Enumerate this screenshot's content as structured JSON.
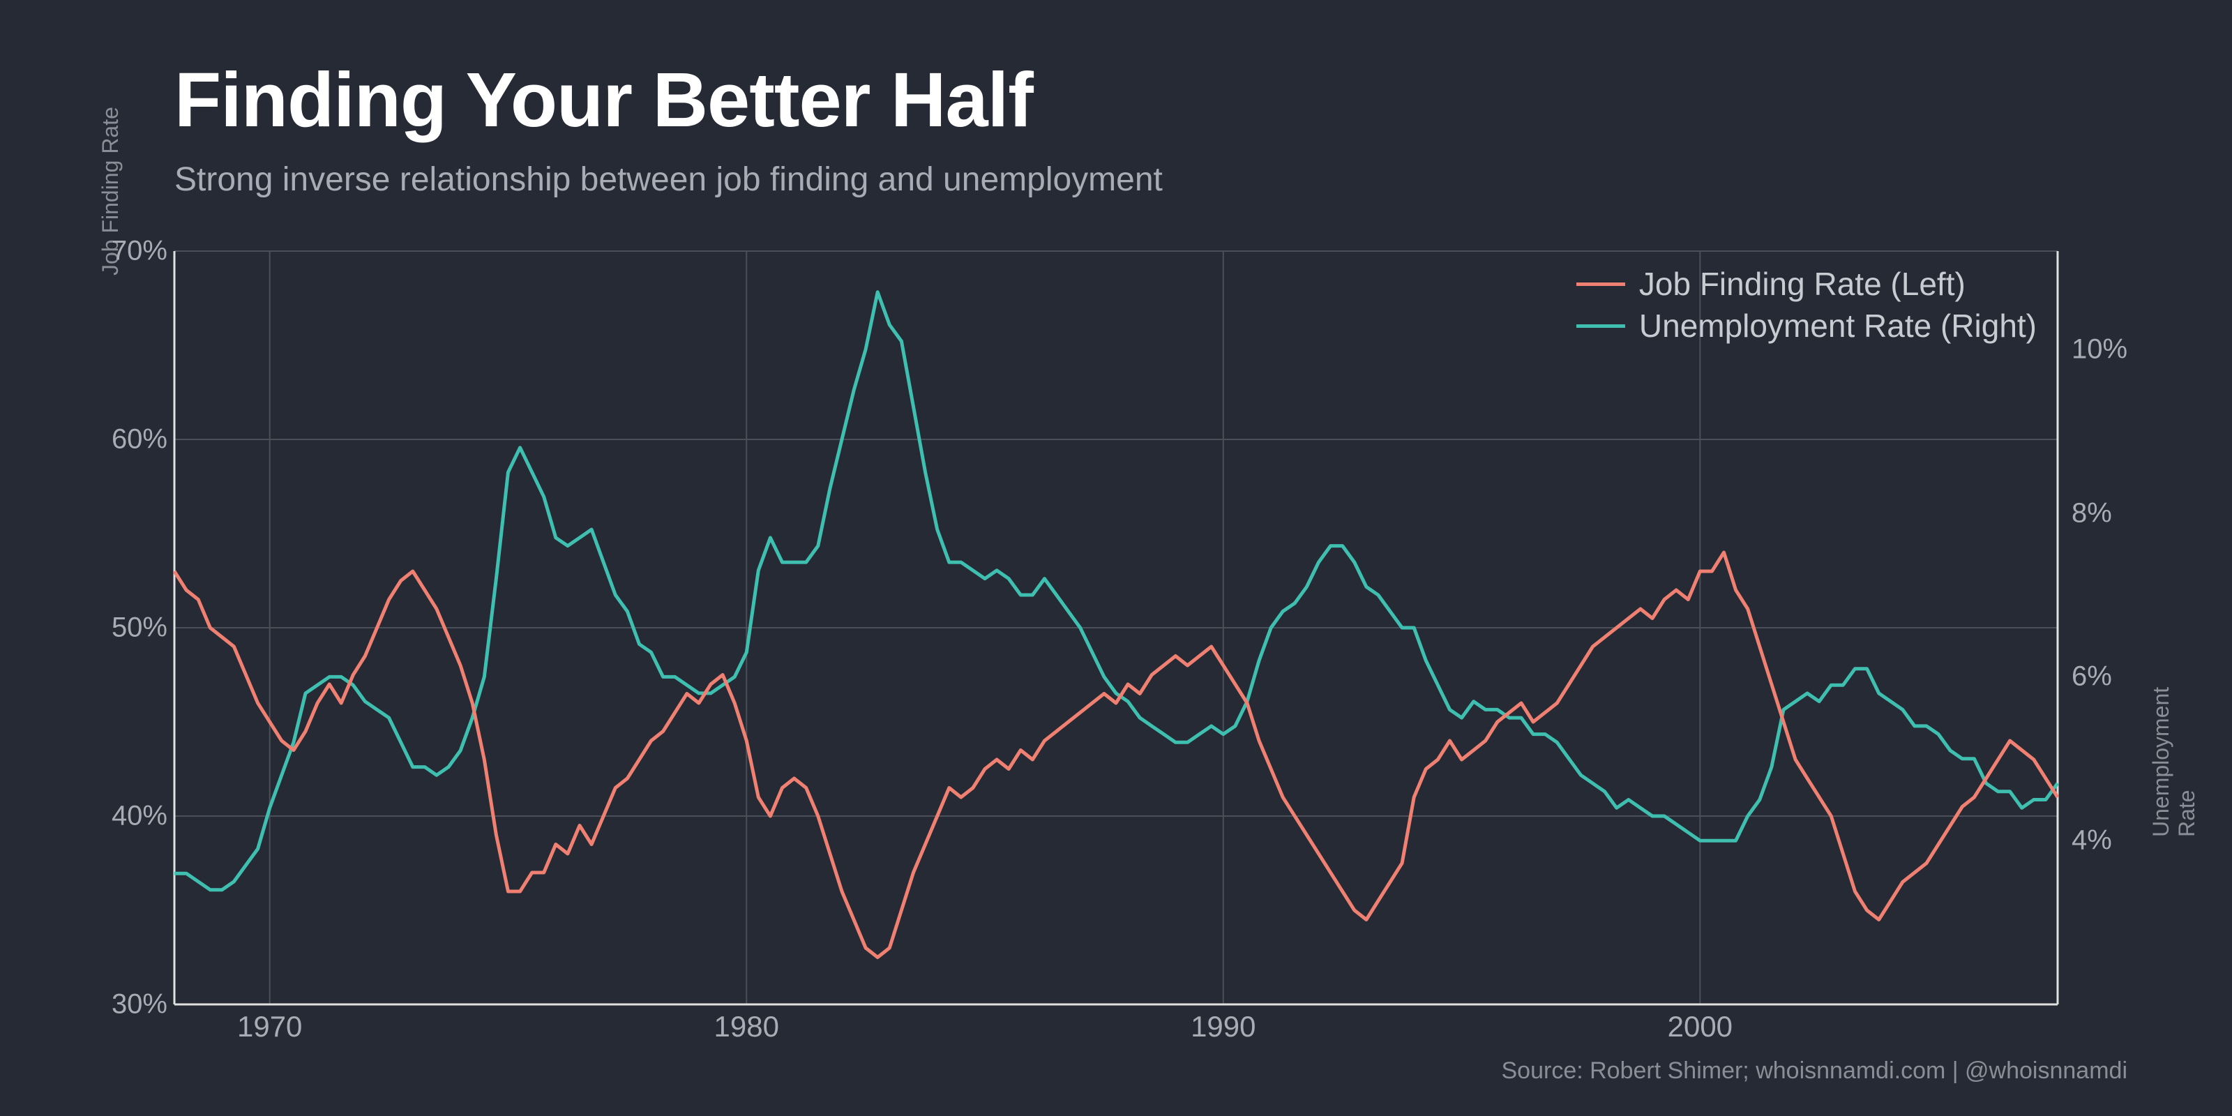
{
  "title": "Finding Your Better Half",
  "subtitle": "Strong inverse relationship between job finding and unemployment",
  "source": "Source: Robert Shimer; whoisnnamdi.com | @whoisnnamdi",
  "axis_left_title": "Job Finding Rate",
  "axis_right_title": "Unemployment Rate",
  "chart": {
    "type": "line-dual-axis",
    "background_color": "#252a34",
    "grid_color": "#4a4f58",
    "axis_color": "#e0e0e0",
    "text_color": "#a8adb5",
    "title_color": "#ffffff",
    "line_width": 5,
    "x": {
      "min": 1968,
      "max": 2007.5,
      "ticks": [
        1970,
        1980,
        1990,
        2000
      ],
      "tick_labels": [
        "1970",
        "1980",
        "1990",
        "2000"
      ]
    },
    "y_left": {
      "min": 30,
      "max": 70,
      "ticks": [
        30,
        40,
        50,
        60,
        70
      ],
      "tick_labels": [
        "30%",
        "40%",
        "50%",
        "60%",
        "70%"
      ],
      "color": "#f08071"
    },
    "y_right": {
      "min": 2,
      "max": 11.2,
      "ticks": [
        4,
        6,
        8,
        10
      ],
      "tick_labels": [
        "4%",
        "6%",
        "8%",
        "10%"
      ],
      "color": "#3fbfb0"
    },
    "legend": {
      "items": [
        {
          "label": "Job Finding Rate (Left)",
          "color": "#f08071"
        },
        {
          "label": "Unemployment Rate (Right)",
          "color": "#3fbfb0"
        }
      ]
    },
    "series_job_finding": {
      "color": "#f08071",
      "axis": "left",
      "points": [
        [
          1968.0,
          53.0
        ],
        [
          1968.25,
          52.0
        ],
        [
          1968.5,
          51.5
        ],
        [
          1968.75,
          50.0
        ],
        [
          1969.0,
          49.5
        ],
        [
          1969.25,
          49.0
        ],
        [
          1969.5,
          47.5
        ],
        [
          1969.75,
          46.0
        ],
        [
          1970.0,
          45.0
        ],
        [
          1970.25,
          44.0
        ],
        [
          1970.5,
          43.5
        ],
        [
          1970.75,
          44.5
        ],
        [
          1971.0,
          46.0
        ],
        [
          1971.25,
          47.0
        ],
        [
          1971.5,
          46.0
        ],
        [
          1971.75,
          47.5
        ],
        [
          1972.0,
          48.5
        ],
        [
          1972.25,
          50.0
        ],
        [
          1972.5,
          51.5
        ],
        [
          1972.75,
          52.5
        ],
        [
          1973.0,
          53.0
        ],
        [
          1973.25,
          52.0
        ],
        [
          1973.5,
          51.0
        ],
        [
          1973.75,
          49.5
        ],
        [
          1974.0,
          48.0
        ],
        [
          1974.25,
          46.0
        ],
        [
          1974.5,
          43.0
        ],
        [
          1974.75,
          39.0
        ],
        [
          1975.0,
          36.0
        ],
        [
          1975.25,
          36.0
        ],
        [
          1975.5,
          37.0
        ],
        [
          1975.75,
          37.0
        ],
        [
          1976.0,
          38.5
        ],
        [
          1976.25,
          38.0
        ],
        [
          1976.5,
          39.5
        ],
        [
          1976.75,
          38.5
        ],
        [
          1977.0,
          40.0
        ],
        [
          1977.25,
          41.5
        ],
        [
          1977.5,
          42.0
        ],
        [
          1977.75,
          43.0
        ],
        [
          1978.0,
          44.0
        ],
        [
          1978.25,
          44.5
        ],
        [
          1978.5,
          45.5
        ],
        [
          1978.75,
          46.5
        ],
        [
          1979.0,
          46.0
        ],
        [
          1979.25,
          47.0
        ],
        [
          1979.5,
          47.5
        ],
        [
          1979.75,
          46.0
        ],
        [
          1980.0,
          44.0
        ],
        [
          1980.25,
          41.0
        ],
        [
          1980.5,
          40.0
        ],
        [
          1980.75,
          41.5
        ],
        [
          1981.0,
          42.0
        ],
        [
          1981.25,
          41.5
        ],
        [
          1981.5,
          40.0
        ],
        [
          1981.75,
          38.0
        ],
        [
          1982.0,
          36.0
        ],
        [
          1982.25,
          34.5
        ],
        [
          1982.5,
          33.0
        ],
        [
          1982.75,
          32.5
        ],
        [
          1983.0,
          33.0
        ],
        [
          1983.25,
          35.0
        ],
        [
          1983.5,
          37.0
        ],
        [
          1983.75,
          38.5
        ],
        [
          1984.0,
          40.0
        ],
        [
          1984.25,
          41.5
        ],
        [
          1984.5,
          41.0
        ],
        [
          1984.75,
          41.5
        ],
        [
          1985.0,
          42.5
        ],
        [
          1985.25,
          43.0
        ],
        [
          1985.5,
          42.5
        ],
        [
          1985.75,
          43.5
        ],
        [
          1986.0,
          43.0
        ],
        [
          1986.25,
          44.0
        ],
        [
          1986.5,
          44.5
        ],
        [
          1986.75,
          45.0
        ],
        [
          1987.0,
          45.5
        ],
        [
          1987.25,
          46.0
        ],
        [
          1987.5,
          46.5
        ],
        [
          1987.75,
          46.0
        ],
        [
          1988.0,
          47.0
        ],
        [
          1988.25,
          46.5
        ],
        [
          1988.5,
          47.5
        ],
        [
          1988.75,
          48.0
        ],
        [
          1989.0,
          48.5
        ],
        [
          1989.25,
          48.0
        ],
        [
          1989.5,
          48.5
        ],
        [
          1989.75,
          49.0
        ],
        [
          1990.0,
          48.0
        ],
        [
          1990.25,
          47.0
        ],
        [
          1990.5,
          46.0
        ],
        [
          1990.75,
          44.0
        ],
        [
          1991.0,
          42.5
        ],
        [
          1991.25,
          41.0
        ],
        [
          1991.5,
          40.0
        ],
        [
          1991.75,
          39.0
        ],
        [
          1992.0,
          38.0
        ],
        [
          1992.25,
          37.0
        ],
        [
          1992.5,
          36.0
        ],
        [
          1992.75,
          35.0
        ],
        [
          1993.0,
          34.5
        ],
        [
          1993.25,
          35.5
        ],
        [
          1993.5,
          36.5
        ],
        [
          1993.75,
          37.5
        ],
        [
          1994.0,
          41.0
        ],
        [
          1994.25,
          42.5
        ],
        [
          1994.5,
          43.0
        ],
        [
          1994.75,
          44.0
        ],
        [
          1995.0,
          43.0
        ],
        [
          1995.25,
          43.5
        ],
        [
          1995.5,
          44.0
        ],
        [
          1995.75,
          45.0
        ],
        [
          1996.0,
          45.5
        ],
        [
          1996.25,
          46.0
        ],
        [
          1996.5,
          45.0
        ],
        [
          1996.75,
          45.5
        ],
        [
          1997.0,
          46.0
        ],
        [
          1997.25,
          47.0
        ],
        [
          1997.5,
          48.0
        ],
        [
          1997.75,
          49.0
        ],
        [
          1998.0,
          49.5
        ],
        [
          1998.25,
          50.0
        ],
        [
          1998.5,
          50.5
        ],
        [
          1998.75,
          51.0
        ],
        [
          1999.0,
          50.5
        ],
        [
          1999.25,
          51.5
        ],
        [
          1999.5,
          52.0
        ],
        [
          1999.75,
          51.5
        ],
        [
          2000.0,
          53.0
        ],
        [
          2000.25,
          53.0
        ],
        [
          2000.5,
          54.0
        ],
        [
          2000.75,
          52.0
        ],
        [
          2001.0,
          51.0
        ],
        [
          2001.25,
          49.0
        ],
        [
          2001.5,
          47.0
        ],
        [
          2001.75,
          45.0
        ],
        [
          2002.0,
          43.0
        ],
        [
          2002.25,
          42.0
        ],
        [
          2002.5,
          41.0
        ],
        [
          2002.75,
          40.0
        ],
        [
          2003.0,
          38.0
        ],
        [
          2003.25,
          36.0
        ],
        [
          2003.5,
          35.0
        ],
        [
          2003.75,
          34.5
        ],
        [
          2004.0,
          35.5
        ],
        [
          2004.25,
          36.5
        ],
        [
          2004.5,
          37.0
        ],
        [
          2004.75,
          37.5
        ],
        [
          2005.0,
          38.5
        ],
        [
          2005.25,
          39.5
        ],
        [
          2005.5,
          40.5
        ],
        [
          2005.75,
          41.0
        ],
        [
          2006.0,
          42.0
        ],
        [
          2006.25,
          43.0
        ],
        [
          2006.5,
          44.0
        ],
        [
          2006.75,
          43.5
        ],
        [
          2007.0,
          43.0
        ],
        [
          2007.25,
          42.0
        ],
        [
          2007.5,
          41.0
        ]
      ]
    },
    "series_unemployment": {
      "color": "#3fbfb0",
      "axis": "right",
      "points": [
        [
          1968.0,
          3.6
        ],
        [
          1968.25,
          3.6
        ],
        [
          1968.5,
          3.5
        ],
        [
          1968.75,
          3.4
        ],
        [
          1969.0,
          3.4
        ],
        [
          1969.25,
          3.5
        ],
        [
          1969.5,
          3.7
        ],
        [
          1969.75,
          3.9
        ],
        [
          1970.0,
          4.4
        ],
        [
          1970.25,
          4.8
        ],
        [
          1970.5,
          5.2
        ],
        [
          1970.75,
          5.8
        ],
        [
          1971.0,
          5.9
        ],
        [
          1971.25,
          6.0
        ],
        [
          1971.5,
          6.0
        ],
        [
          1971.75,
          5.9
        ],
        [
          1972.0,
          5.7
        ],
        [
          1972.25,
          5.6
        ],
        [
          1972.5,
          5.5
        ],
        [
          1972.75,
          5.2
        ],
        [
          1973.0,
          4.9
        ],
        [
          1973.25,
          4.9
        ],
        [
          1973.5,
          4.8
        ],
        [
          1973.75,
          4.9
        ],
        [
          1974.0,
          5.1
        ],
        [
          1974.25,
          5.5
        ],
        [
          1974.5,
          6.0
        ],
        [
          1974.75,
          7.2
        ],
        [
          1975.0,
          8.5
        ],
        [
          1975.25,
          8.8
        ],
        [
          1975.5,
          8.5
        ],
        [
          1975.75,
          8.2
        ],
        [
          1976.0,
          7.7
        ],
        [
          1976.25,
          7.6
        ],
        [
          1976.5,
          7.7
        ],
        [
          1976.75,
          7.8
        ],
        [
          1977.0,
          7.4
        ],
        [
          1977.25,
          7.0
        ],
        [
          1977.5,
          6.8
        ],
        [
          1977.75,
          6.4
        ],
        [
          1978.0,
          6.3
        ],
        [
          1978.25,
          6.0
        ],
        [
          1978.5,
          6.0
        ],
        [
          1978.75,
          5.9
        ],
        [
          1979.0,
          5.8
        ],
        [
          1979.25,
          5.8
        ],
        [
          1979.5,
          5.9
        ],
        [
          1979.75,
          6.0
        ],
        [
          1980.0,
          6.3
        ],
        [
          1980.25,
          7.3
        ],
        [
          1980.5,
          7.7
        ],
        [
          1980.75,
          7.4
        ],
        [
          1981.0,
          7.4
        ],
        [
          1981.25,
          7.4
        ],
        [
          1981.5,
          7.6
        ],
        [
          1981.75,
          8.3
        ],
        [
          1982.0,
          8.9
        ],
        [
          1982.25,
          9.5
        ],
        [
          1982.5,
          10.0
        ],
        [
          1982.75,
          10.7
        ],
        [
          1983.0,
          10.3
        ],
        [
          1983.25,
          10.1
        ],
        [
          1983.5,
          9.3
        ],
        [
          1983.75,
          8.5
        ],
        [
          1984.0,
          7.8
        ],
        [
          1984.25,
          7.4
        ],
        [
          1984.5,
          7.4
        ],
        [
          1984.75,
          7.3
        ],
        [
          1985.0,
          7.2
        ],
        [
          1985.25,
          7.3
        ],
        [
          1985.5,
          7.2
        ],
        [
          1985.75,
          7.0
        ],
        [
          1986.0,
          7.0
        ],
        [
          1986.25,
          7.2
        ],
        [
          1986.5,
          7.0
        ],
        [
          1986.75,
          6.8
        ],
        [
          1987.0,
          6.6
        ],
        [
          1987.25,
          6.3
        ],
        [
          1987.5,
          6.0
        ],
        [
          1987.75,
          5.8
        ],
        [
          1988.0,
          5.7
        ],
        [
          1988.25,
          5.5
        ],
        [
          1988.5,
          5.4
        ],
        [
          1988.75,
          5.3
        ],
        [
          1989.0,
          5.2
        ],
        [
          1989.25,
          5.2
        ],
        [
          1989.5,
          5.3
        ],
        [
          1989.75,
          5.4
        ],
        [
          1990.0,
          5.3
        ],
        [
          1990.25,
          5.4
        ],
        [
          1990.5,
          5.7
        ],
        [
          1990.75,
          6.2
        ],
        [
          1991.0,
          6.6
        ],
        [
          1991.25,
          6.8
        ],
        [
          1991.5,
          6.9
        ],
        [
          1991.75,
          7.1
        ],
        [
          1992.0,
          7.4
        ],
        [
          1992.25,
          7.6
        ],
        [
          1992.5,
          7.6
        ],
        [
          1992.75,
          7.4
        ],
        [
          1993.0,
          7.1
        ],
        [
          1993.25,
          7.0
        ],
        [
          1993.5,
          6.8
        ],
        [
          1993.75,
          6.6
        ],
        [
          1994.0,
          6.6
        ],
        [
          1994.25,
          6.2
        ],
        [
          1994.5,
          5.9
        ],
        [
          1994.75,
          5.6
        ],
        [
          1995.0,
          5.5
        ],
        [
          1995.25,
          5.7
        ],
        [
          1995.5,
          5.6
        ],
        [
          1995.75,
          5.6
        ],
        [
          1996.0,
          5.5
        ],
        [
          1996.25,
          5.5
        ],
        [
          1996.5,
          5.3
        ],
        [
          1996.75,
          5.3
        ],
        [
          1997.0,
          5.2
        ],
        [
          1997.25,
          5.0
        ],
        [
          1997.5,
          4.8
        ],
        [
          1997.75,
          4.7
        ],
        [
          1998.0,
          4.6
        ],
        [
          1998.25,
          4.4
        ],
        [
          1998.5,
          4.5
        ],
        [
          1998.75,
          4.4
        ],
        [
          1999.0,
          4.3
        ],
        [
          1999.25,
          4.3
        ],
        [
          1999.5,
          4.2
        ],
        [
          1999.75,
          4.1
        ],
        [
          2000.0,
          4.0
        ],
        [
          2000.25,
          4.0
        ],
        [
          2000.5,
          4.0
        ],
        [
          2000.75,
          4.0
        ],
        [
          2001.0,
          4.3
        ],
        [
          2001.25,
          4.5
        ],
        [
          2001.5,
          4.9
        ],
        [
          2001.75,
          5.6
        ],
        [
          2002.0,
          5.7
        ],
        [
          2002.25,
          5.8
        ],
        [
          2002.5,
          5.7
        ],
        [
          2002.75,
          5.9
        ],
        [
          2003.0,
          5.9
        ],
        [
          2003.25,
          6.1
        ],
        [
          2003.5,
          6.1
        ],
        [
          2003.75,
          5.8
        ],
        [
          2004.0,
          5.7
        ],
        [
          2004.25,
          5.6
        ],
        [
          2004.5,
          5.4
        ],
        [
          2004.75,
          5.4
        ],
        [
          2005.0,
          5.3
        ],
        [
          2005.25,
          5.1
        ],
        [
          2005.5,
          5.0
        ],
        [
          2005.75,
          5.0
        ],
        [
          2006.0,
          4.7
        ],
        [
          2006.25,
          4.6
        ],
        [
          2006.5,
          4.6
        ],
        [
          2006.75,
          4.4
        ],
        [
          2007.0,
          4.5
        ],
        [
          2007.25,
          4.5
        ],
        [
          2007.5,
          4.7
        ]
      ]
    }
  }
}
